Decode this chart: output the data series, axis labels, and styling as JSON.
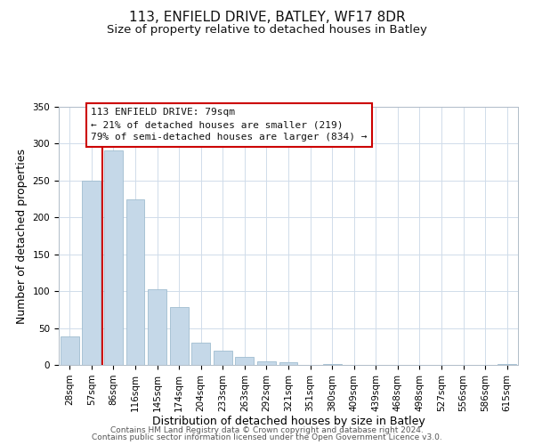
{
  "title": "113, ENFIELD DRIVE, BATLEY, WF17 8DR",
  "subtitle": "Size of property relative to detached houses in Batley",
  "xlabel": "Distribution of detached houses by size in Batley",
  "ylabel": "Number of detached properties",
  "bar_labels": [
    "28sqm",
    "57sqm",
    "86sqm",
    "116sqm",
    "145sqm",
    "174sqm",
    "204sqm",
    "233sqm",
    "263sqm",
    "292sqm",
    "321sqm",
    "351sqm",
    "380sqm",
    "409sqm",
    "439sqm",
    "468sqm",
    "498sqm",
    "527sqm",
    "556sqm",
    "586sqm",
    "615sqm"
  ],
  "bar_values": [
    39,
    250,
    291,
    225,
    103,
    78,
    30,
    19,
    11,
    5,
    4,
    0,
    1,
    0,
    0,
    0,
    0,
    0,
    0,
    0,
    1
  ],
  "bar_color": "#c5d8e8",
  "bar_edge_color": "#a0bdd0",
  "vline_color": "#cc0000",
  "vline_x_idx": 2,
  "annotation_title": "113 ENFIELD DRIVE: 79sqm",
  "annotation_line1": "← 21% of detached houses are smaller (219)",
  "annotation_line2": "79% of semi-detached houses are larger (834) →",
  "annotation_box_color": "#ffffff",
  "annotation_box_edge": "#cc0000",
  "ylim": [
    0,
    350
  ],
  "yticks": [
    0,
    50,
    100,
    150,
    200,
    250,
    300,
    350
  ],
  "footer1": "Contains HM Land Registry data © Crown copyright and database right 2024.",
  "footer2": "Contains public sector information licensed under the Open Government Licence v3.0.",
  "background_color": "#ffffff",
  "grid_color": "#d0dcea",
  "title_fontsize": 11,
  "subtitle_fontsize": 9.5,
  "axis_label_fontsize": 9,
  "tick_fontsize": 7.5,
  "annotation_fontsize": 8,
  "footer_fontsize": 6.5
}
